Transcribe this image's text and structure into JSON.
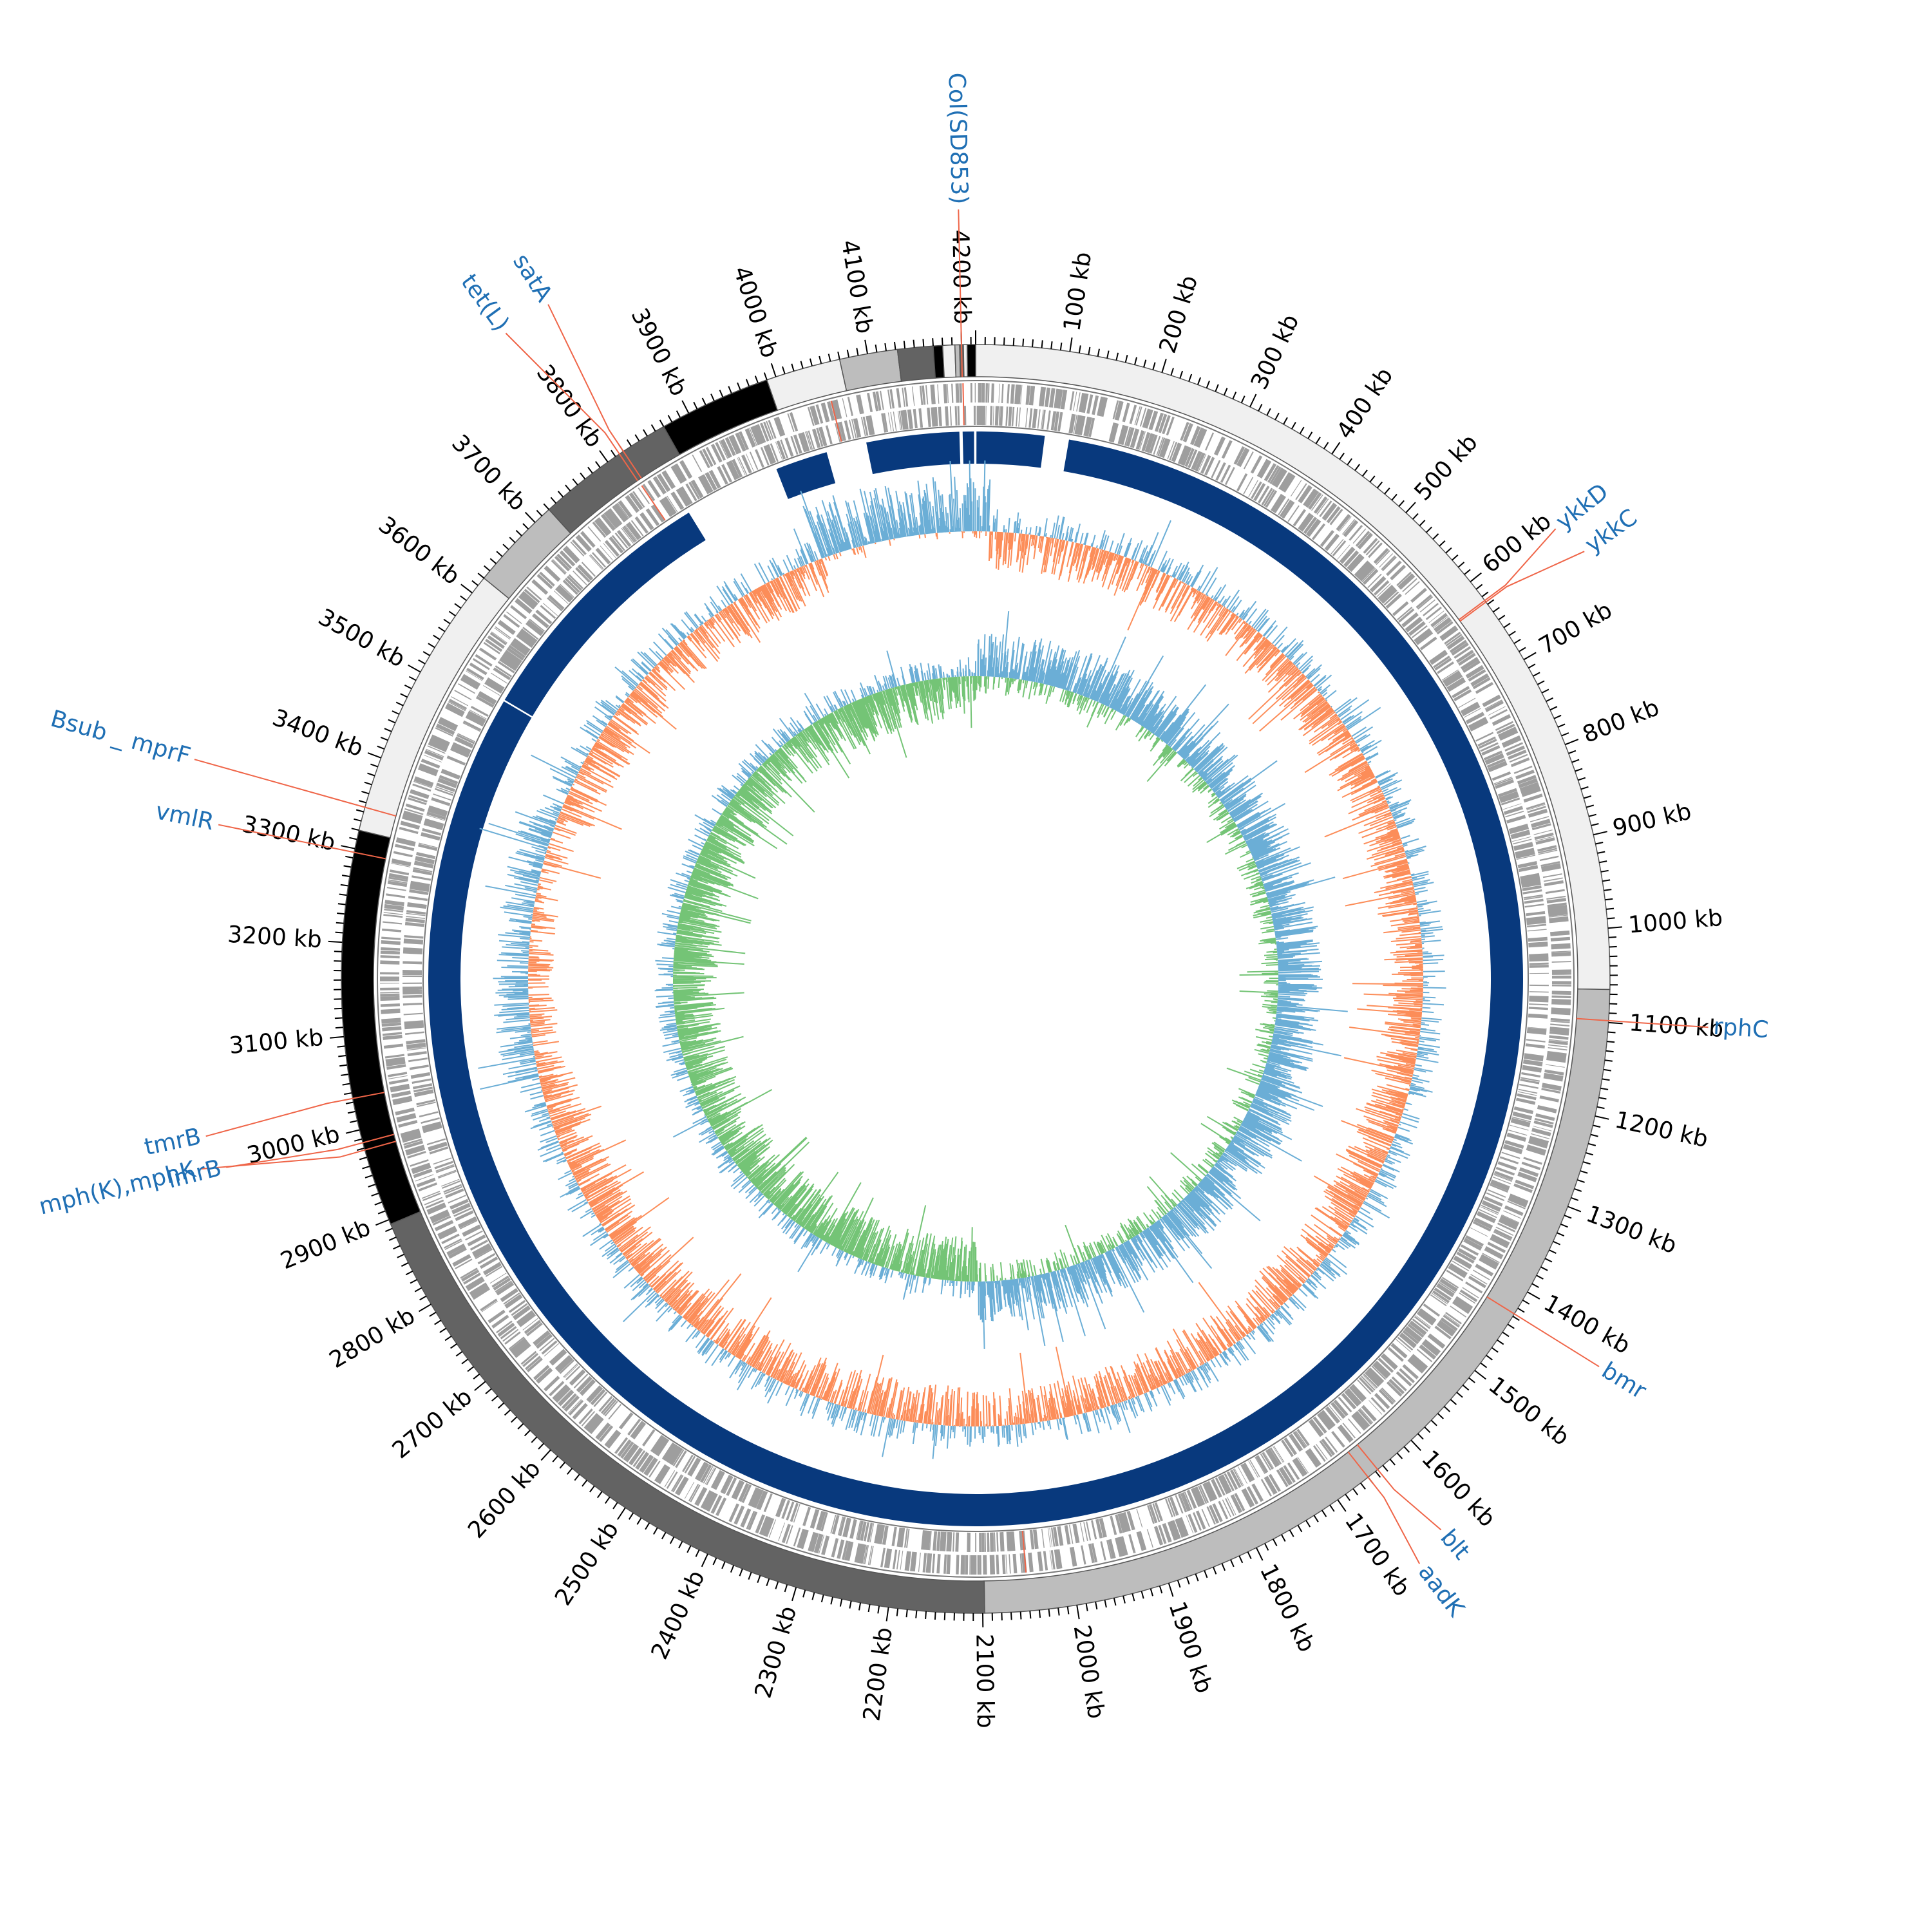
{
  "genome": {
    "total_kb": 4215,
    "tick_unit": "kb",
    "major_tick_step_kb": 100,
    "minor_tick_step_kb": 10
  },
  "colors": {
    "ring_stroke": "#555555",
    "cds": "#9e9e9e",
    "cds_highlight": "#ef6548",
    "contig": "#08397d",
    "gc_content_high": "#6baed6",
    "gc_content_low": "#fc8d59",
    "gc_skew_positive": "#6baed6",
    "gc_skew_negative": "#74c476",
    "label_text": "#1f6fb4",
    "label_line": "#ef6548",
    "tick_text": "#000000"
  },
  "segments": [
    {
      "start_kb": 0,
      "end_kb": 1065,
      "shade": "#f0f0f0"
    },
    {
      "start_kb": 1065,
      "end_kb": 2098,
      "shade": "#bdbdbd"
    },
    {
      "start_kb": 2098,
      "end_kb": 2895,
      "shade": "#636363"
    },
    {
      "start_kb": 2895,
      "end_kb": 3320,
      "shade": "#000000"
    },
    {
      "start_kb": 3320,
      "end_kb": 3620,
      "shade": "#f0f0f0"
    },
    {
      "start_kb": 3620,
      "end_kb": 3720,
      "shade": "#bdbdbd"
    },
    {
      "start_kb": 3720,
      "end_kb": 3870,
      "shade": "#636363"
    },
    {
      "start_kb": 3870,
      "end_kb": 3990,
      "shade": "#000000"
    },
    {
      "start_kb": 3990,
      "end_kb": 4070,
      "shade": "#f0f0f0"
    },
    {
      "start_kb": 4070,
      "end_kb": 4132,
      "shade": "#bdbdbd"
    },
    {
      "start_kb": 4132,
      "end_kb": 4170,
      "shade": "#636363"
    },
    {
      "start_kb": 4170,
      "end_kb": 4180,
      "shade": "#000000"
    },
    {
      "start_kb": 4180,
      "end_kb": 4193,
      "shade": "#f0f0f0"
    },
    {
      "start_kb": 4193,
      "end_kb": 4198,
      "shade": "#bdbdbd"
    },
    {
      "start_kb": 4198,
      "end_kb": 4202,
      "shade": "#636363"
    },
    {
      "start_kb": 4202,
      "end_kb": 4206,
      "shade": "#f0f0f0"
    },
    {
      "start_kb": 4206,
      "end_kb": 4215,
      "shade": "#000000"
    }
  ],
  "contigs": [
    {
      "start_kb": 1,
      "end_kb": 85
    },
    {
      "start_kb": 115,
      "end_kb": 3518
    },
    {
      "start_kb": 3520,
      "end_kb": 3845
    },
    {
      "start_kb": 3965,
      "end_kb": 4030
    },
    {
      "start_kb": 4080,
      "end_kb": 4195
    },
    {
      "start_kb": 4199,
      "end_kb": 4213
    }
  ],
  "genes": [
    {
      "name": "Col(SD853)",
      "position_kb": 4200
    },
    {
      "name": "ykkD",
      "position_kb": 625
    },
    {
      "name": "ykkC",
      "position_kb": 627
    },
    {
      "name": "rphC",
      "position_kb": 1098
    },
    {
      "name": "bmr",
      "position_kb": 1427
    },
    {
      "name": "blt",
      "position_kb": 1647
    },
    {
      "name": "aadK",
      "position_kb": 1660
    },
    {
      "name": "mph(K),mphK",
      "position_kb": 2978
    },
    {
      "name": "lmrB",
      "position_kb": 2986
    },
    {
      "name": "tmrB",
      "position_kb": 3034
    },
    {
      "name": "vmlR",
      "position_kb": 3296
    },
    {
      "name": "Bsub _ mprF",
      "position_kb": 3345
    },
    {
      "name": "tet(L)",
      "position_kb": 3815
    },
    {
      "name": "satA",
      "position_kb": 3820
    }
  ],
  "chart_data": {
    "type": "circular-genome-map",
    "tracks": [
      "segments",
      "CDS forward",
      "CDS reverse",
      "contigs",
      "GC content",
      "GC skew"
    ],
    "x_unit": "kb",
    "xlim": [
      0,
      4215
    ]
  }
}
